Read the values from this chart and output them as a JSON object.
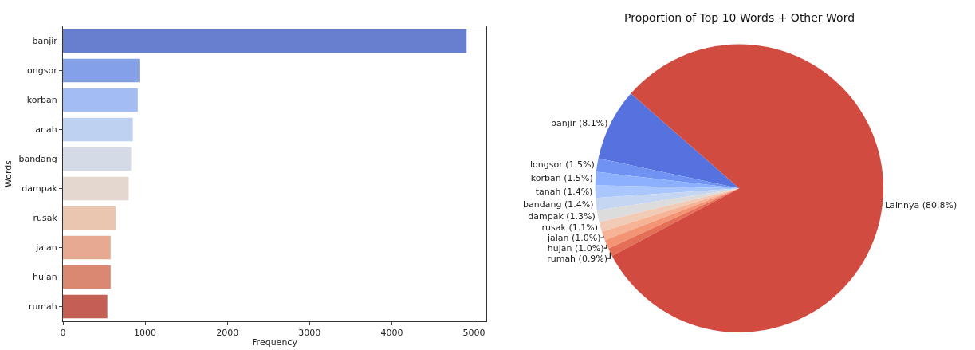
{
  "chart_data": [
    {
      "type": "bar",
      "orientation": "horizontal",
      "xlabel": "Frequency",
      "ylabel": "Words",
      "categories": [
        "banjir",
        "longsor",
        "korban",
        "tanah",
        "bandang",
        "dampak",
        "rusak",
        "jalan",
        "hujan",
        "rumah"
      ],
      "values": [
        4910,
        930,
        910,
        850,
        830,
        800,
        640,
        580,
        580,
        540
      ],
      "colors": [
        "#687fd0",
        "#84a0e6",
        "#a3bcf2",
        "#bfd1f1",
        "#d5dbe6",
        "#e4d7cf",
        "#eac5b0",
        "#e7a98f",
        "#da8872",
        "#c55f54"
      ],
      "xlim": [
        0,
        5150
      ],
      "xticks": [
        0,
        1000,
        2000,
        3000,
        4000,
        5000
      ],
      "grid": false
    },
    {
      "type": "pie",
      "title": "Proportion of Top 10 Words + Other Word",
      "categories": [
        "banjir",
        "longsor",
        "korban",
        "tanah",
        "bandang",
        "dampak",
        "rusak",
        "jalan",
        "hujan",
        "rumah",
        "Lainnya"
      ],
      "values": [
        8.1,
        1.5,
        1.5,
        1.4,
        1.4,
        1.3,
        1.1,
        1.0,
        1.0,
        0.9,
        80.8
      ],
      "value_labels": [
        "(8.1%)",
        "(1.5%)",
        "(1.5%)",
        "(1.4%)",
        "(1.4%)",
        "(1.3%)",
        "(1.1%)",
        "(1.0%)",
        "(1.0%)",
        "(0.9%)",
        "(80.8%)"
      ],
      "colors": [
        "#5572df",
        "#7093f3",
        "#8db0fe",
        "#aac7fd",
        "#c5d6f2",
        "#dddcdc",
        "#f2cbb7",
        "#f7b396",
        "#f39475",
        "#e46e56",
        "#d24b40"
      ]
    }
  ]
}
